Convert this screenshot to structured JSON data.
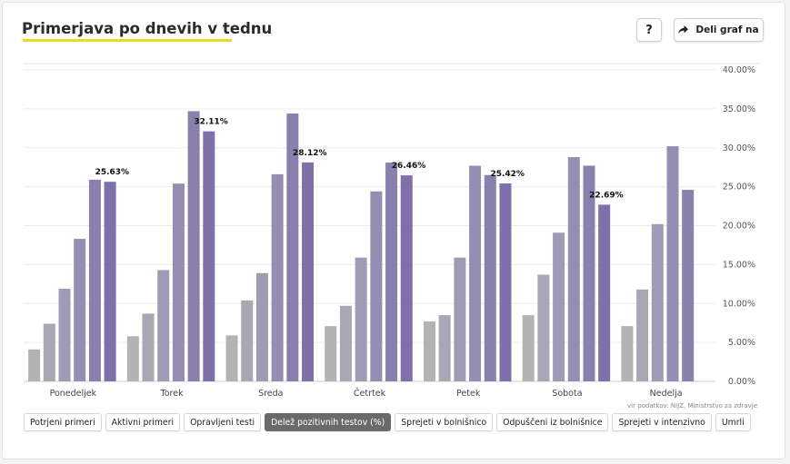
{
  "header": {
    "title": "Primerjava po dnevih v tednu",
    "help_label": "?",
    "share_label": "Deli graf na",
    "share_icon": "share-arrow-icon"
  },
  "source": "vir podatkov: NIJZ, Ministrstvo za zdravje",
  "tabs": [
    {
      "label": "Potrjeni primeri",
      "active": false
    },
    {
      "label": "Aktivni primeri",
      "active": false
    },
    {
      "label": "Opravljeni testi",
      "active": false
    },
    {
      "label": "Delež pozitivnih testov (%)",
      "active": true
    },
    {
      "label": "Sprejeti v bolnišnico",
      "active": false
    },
    {
      "label": "Odpuščeni iz bolnišnice",
      "active": false
    },
    {
      "label": "Sprejeti v intenzivno",
      "active": false
    },
    {
      "label": "Umrli",
      "active": false
    }
  ],
  "colors": {
    "series": [
      "#b3b3b3",
      "#a9a7b3",
      "#a09bb4",
      "#958eb2",
      "#8a80ae",
      "#7f70a9",
      "#7664a2"
    ],
    "accent": "#f2d81a",
    "active_tab": "#6a6a6a"
  },
  "chart_data": {
    "type": "bar",
    "categories": [
      "Ponedeljek",
      "Torek",
      "Sreda",
      "Četrtek",
      "Petek",
      "Sobota",
      "Nedelja"
    ],
    "series": [
      {
        "values": [
          4.1,
          5.8,
          5.9,
          7.1,
          7.7,
          8.5,
          7.1
        ]
      },
      {
        "values": [
          7.4,
          8.7,
          10.4,
          9.7,
          8.5,
          13.7,
          11.8
        ]
      },
      {
        "values": [
          11.9,
          14.3,
          13.9,
          15.9,
          15.9,
          19.1,
          20.2
        ]
      },
      {
        "values": [
          18.3,
          25.4,
          26.6,
          24.4,
          27.7,
          28.8,
          30.2
        ]
      },
      {
        "values": [
          25.9,
          34.7,
          34.4,
          28.1,
          26.5,
          27.7,
          24.6
        ]
      },
      {
        "values": [
          25.63,
          32.11,
          28.12,
          26.46,
          25.42,
          22.69,
          null
        ]
      }
    ],
    "labeled_series_index": 5,
    "data_labels": [
      "25.63%",
      "32.11%",
      "28.12%",
      "26.46%",
      "25.42%",
      "22.69%",
      ""
    ],
    "y_ticks": [
      "0.00%",
      "5.00%",
      "10.00%",
      "15.00%",
      "20.00%",
      "25.00%",
      "30.00%",
      "35.00%",
      "40.00%"
    ],
    "ylim": [
      0,
      40
    ],
    "y_axis_position": "right",
    "grid": true,
    "legend": "none"
  }
}
